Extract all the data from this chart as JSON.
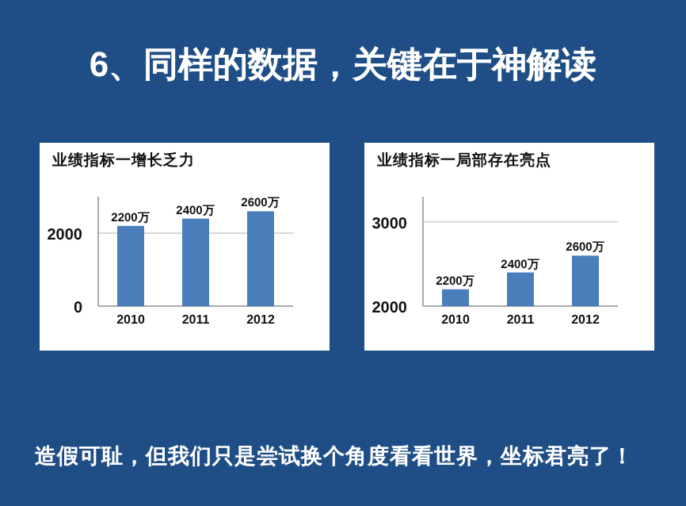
{
  "chart_data": [
    {
      "type": "other",
      "title": "6、同样的数据，关键在于神解读"
    },
    {
      "type": "bar",
      "title": "业绩指标一增长乏力",
      "categories": [
        "2010",
        "2011",
        "2012"
      ],
      "values": [
        2200,
        2400,
        2600
      ],
      "value_labels": [
        "2200万",
        "2400万",
        "2600万"
      ],
      "color": "#4a7ebb",
      "ylim": [
        0,
        3000
      ],
      "yticks": [
        0,
        2000
      ],
      "grid": "y"
    },
    {
      "type": "bar",
      "title": "业绩指标一局部存在亮点",
      "categories": [
        "2010",
        "2011",
        "2012"
      ],
      "values": [
        2200,
        2400,
        2600
      ],
      "value_labels": [
        "2200万",
        "2400万",
        "2600万"
      ],
      "color": "#4a7ebb",
      "ylim": [
        2000,
        3300
      ],
      "yticks": [
        2000,
        3000
      ],
      "grid": "y"
    },
    {
      "type": "other",
      "annotations": [
        "造假可耻，但我们只是尝试换个角度看看世界，坐标君亮了！"
      ]
    }
  ]
}
